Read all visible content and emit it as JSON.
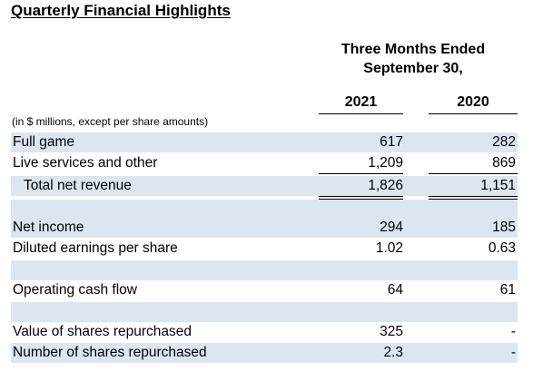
{
  "title": "Quarterly Financial Highlights",
  "period_header": {
    "line1": "Three Months Ended",
    "line2": "September 30,"
  },
  "years": [
    "2021",
    "2020"
  ],
  "units_note": "(in $ millions, except per share amounts)",
  "rows": [
    {
      "label": "Full game",
      "v2021": "617",
      "v2020": "282",
      "shaded": true
    },
    {
      "label": "Live services and other",
      "v2021": "1,209",
      "v2020": "869",
      "shaded": false
    },
    {
      "label": "Total net revenue",
      "v2021": "1,826",
      "v2020": "1,151",
      "shaded": true
    },
    {
      "label": "Net income",
      "v2021": "294",
      "v2020": "185",
      "shaded": true
    },
    {
      "label": "Diluted earnings per share",
      "v2021": "1.02",
      "v2020": "0.63",
      "shaded": false
    },
    {
      "label": "Operating cash flow",
      "v2021": "64",
      "v2020": "61",
      "shaded": false
    },
    {
      "label": "Value of shares repurchased",
      "v2021": "325",
      "v2020": "-",
      "shaded": false
    },
    {
      "label": "Number of shares repurchased",
      "v2021": "2.3",
      "v2020": "-",
      "shaded": true
    }
  ],
  "colors": {
    "row_shade": "#dce6f1",
    "text": "#000000"
  }
}
